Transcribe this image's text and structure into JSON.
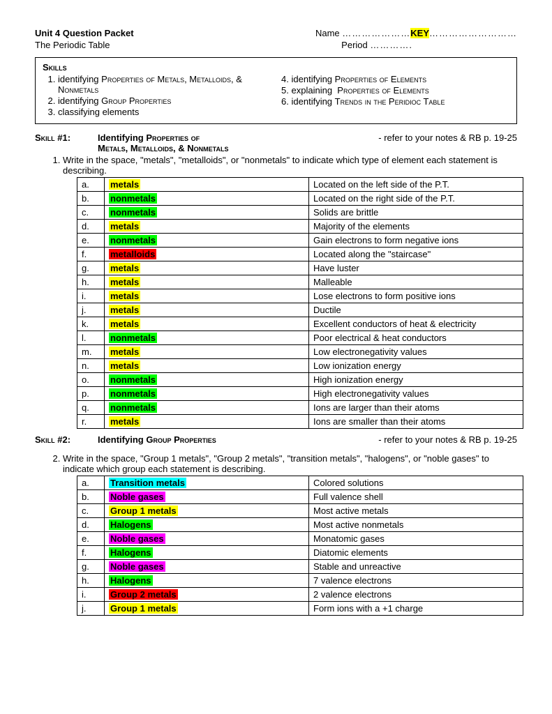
{
  "header": {
    "title": "Unit 4 Question Packet",
    "subtitle": "The Periodic Table",
    "name_label": "Name",
    "key": "KEY",
    "period_label": "Period"
  },
  "skills_box": {
    "label": "Skills",
    "left": [
      "identifying Properties of Metals, Metalloids, & Nonmetals",
      "identifying Group Properties",
      "classifying elements"
    ],
    "right": [
      "identifying Properties of Elements",
      "explaining  Properties of Elements",
      "identifying Trends in the Peridioc Table"
    ]
  },
  "skill1": {
    "label": "Skill #1:",
    "title_l1": "Identifying Properties of",
    "title_l2": "Metals, Metalloids, & Nonmetals",
    "ref": "- refer to your notes & RB p. 19-25",
    "question": "Write in the space, \"metals\", \"metalloids\", or \"nonmetals\" to indicate which type of element each statement is describing.",
    "rows": [
      {
        "l": "a.",
        "ans": "metals",
        "cls": "hl-yellow",
        "desc": "Located on the left side of the P.T."
      },
      {
        "l": "b.",
        "ans": "nonmetals",
        "cls": "hl-green",
        "desc": "Located on the right side of the P.T."
      },
      {
        "l": "c.",
        "ans": "nonmetals",
        "cls": "hl-green",
        "desc": "Solids are brittle"
      },
      {
        "l": "d.",
        "ans": "metals",
        "cls": "hl-yellow",
        "desc": "Majority of the elements"
      },
      {
        "l": "e.",
        "ans": "nonmetals",
        "cls": "hl-green",
        "desc": "Gain electrons to form negative ions"
      },
      {
        "l": "f.",
        "ans": "metalloids",
        "cls": "hl-red",
        "desc": "Located along the \"staircase\""
      },
      {
        "l": "g.",
        "ans": "metals",
        "cls": "hl-yellow",
        "desc": "Have luster"
      },
      {
        "l": "h.",
        "ans": "metals",
        "cls": "hl-yellow",
        "desc": "Malleable"
      },
      {
        "l": "i.",
        "ans": "metals",
        "cls": "hl-yellow",
        "desc": "Lose electrons to form positive ions"
      },
      {
        "l": "j.",
        "ans": "metals",
        "cls": "hl-yellow",
        "desc": "Ductile"
      },
      {
        "l": "k.",
        "ans": "metals",
        "cls": "hl-yellow",
        "desc": "Excellent conductors of heat & electricity"
      },
      {
        "l": "l.",
        "ans": "nonmetals",
        "cls": "hl-green",
        "desc": "Poor electrical & heat conductors"
      },
      {
        "l": "m.",
        "ans": "metals",
        "cls": "hl-yellow",
        "desc": "Low electronegativity values"
      },
      {
        "l": "n.",
        "ans": "metals",
        "cls": "hl-yellow",
        "desc": "Low ionization energy"
      },
      {
        "l": "o.",
        "ans": "nonmetals",
        "cls": "hl-green",
        "desc": "High ionization energy"
      },
      {
        "l": "p.",
        "ans": "nonmetals",
        "cls": "hl-green",
        "desc": "High electronegativity values"
      },
      {
        "l": "q.",
        "ans": "nonmetals",
        "cls": "hl-green",
        "desc": "Ions are larger than  their atoms"
      },
      {
        "l": "r.",
        "ans": "metals",
        "cls": "hl-yellow",
        "desc": "Ions are smaller than their atoms"
      }
    ]
  },
  "skill2": {
    "label": "Skill #2:",
    "title": "Identifying Group Properties",
    "ref": "- refer to your notes & RB p. 19-25",
    "question": "Write in the space, \"Group 1 metals\", \"Group 2 metals\", \"transition metals\", \"halogens\", or \"noble gases\" to indicate which group each statement is describing.",
    "rows": [
      {
        "l": "a.",
        "ans": "Transition metals",
        "cls": "hl-cyan",
        "desc": "Colored solutions"
      },
      {
        "l": "b.",
        "ans": "Noble gases",
        "cls": "hl-magenta",
        "desc": "Full valence shell"
      },
      {
        "l": "c.",
        "ans": "Group 1 metals",
        "cls": "hl-yellow",
        "desc": "Most active metals"
      },
      {
        "l": "d.",
        "ans": "Halogens",
        "cls": "hl-green",
        "desc": "Most active nonmetals"
      },
      {
        "l": "e.",
        "ans": "Noble gases",
        "cls": "hl-magenta",
        "desc": "Monatomic gases"
      },
      {
        "l": "f.",
        "ans": "Halogens",
        "cls": "hl-green",
        "desc": "Diatomic elements"
      },
      {
        "l": "g.",
        "ans": "Noble gases",
        "cls": "hl-magenta",
        "desc": "Stable and unreactive"
      },
      {
        "l": "h.",
        "ans": "Halogens",
        "cls": "hl-green",
        "desc": "7 valence electrons"
      },
      {
        "l": "i.",
        "ans": "Group 2 metals",
        "cls": "hl-red",
        "desc": "2 valence electrons"
      },
      {
        "l": "j.",
        "ans": "Group 1 metals",
        "cls": "hl-yellow",
        "desc": "Form ions with a +1 charge"
      }
    ]
  },
  "colors": {
    "hl-yellow": "#ffff00",
    "hl-green": "#00ff00",
    "hl-red": "#ff0000",
    "hl-cyan": "#00ffff",
    "hl-magenta": "#ff00ff"
  }
}
